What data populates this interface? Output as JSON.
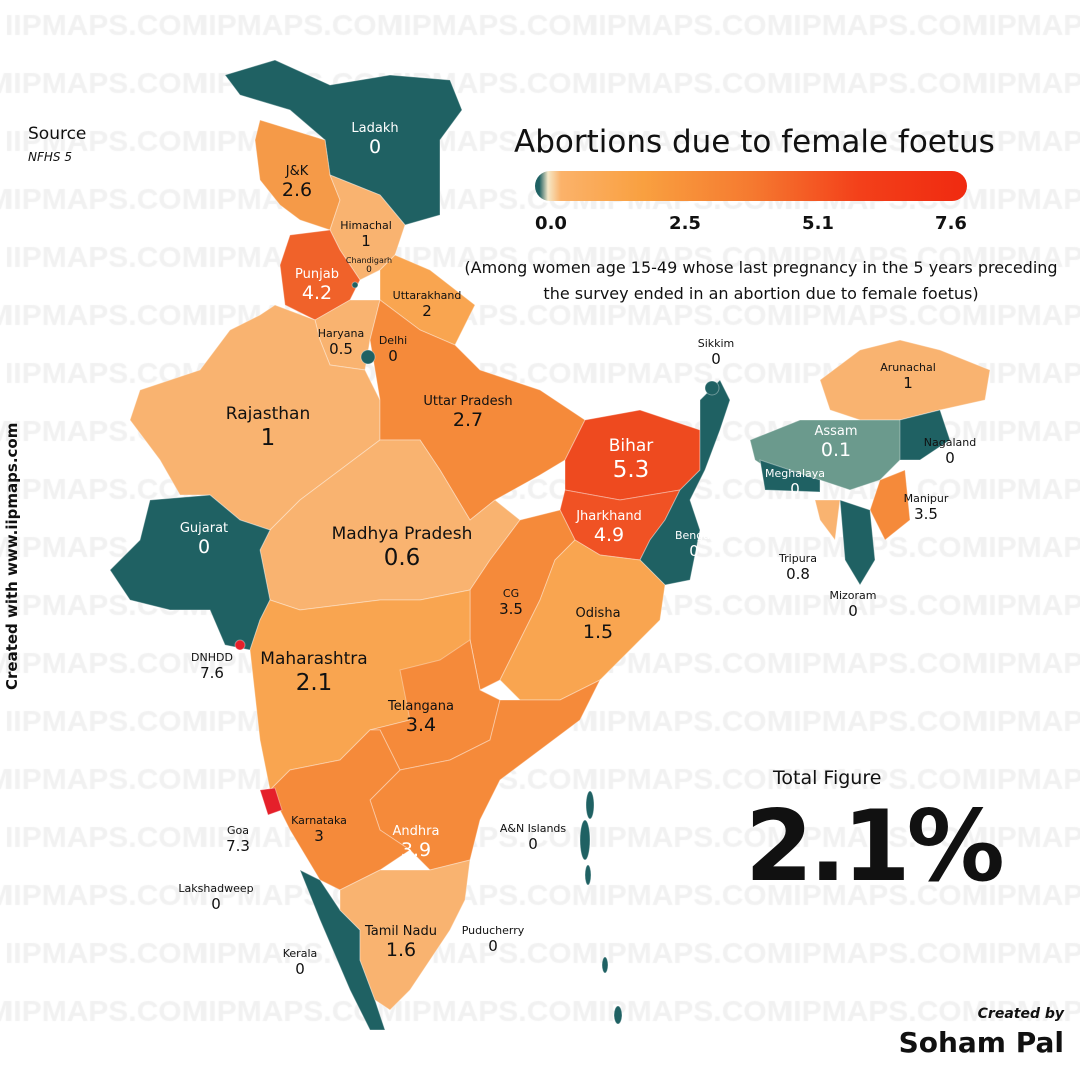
{
  "watermark": "IIPMAPS.COM",
  "source": {
    "label": "Source",
    "value": "NFHS 5"
  },
  "side_credit": "Created with www.iipmaps.com",
  "title": "Abortions due to female foetus",
  "legend": {
    "ticks": [
      "0.0",
      "2.5",
      "5.1",
      "7.6"
    ],
    "min": 0,
    "max": 7.6,
    "colors": {
      "zero": "#1f6163",
      "low": "#fbb26a",
      "mid": "#f57a30",
      "high": "#f02a10"
    }
  },
  "subtitle": "(Among women age 15-49 whose last pregnancy in the 5 years preceding the survey ended in an abortion due to female foetus)",
  "total": {
    "label": "Total Figure",
    "value": "2.1%"
  },
  "credit": {
    "label": "Created by",
    "name": "Soham Pal"
  },
  "regions": [
    {
      "id": "ladakh",
      "name": "Ladakh",
      "value": "0"
    },
    {
      "id": "jk",
      "name": "J&K",
      "value": "2.6"
    },
    {
      "id": "himachal",
      "name": "Himachal",
      "value": "1"
    },
    {
      "id": "chandigarh",
      "name": "Chandigarh",
      "value": "0"
    },
    {
      "id": "punjab",
      "name": "Punjab",
      "value": "4.2"
    },
    {
      "id": "uttarakhand",
      "name": "Uttarakhand",
      "value": "2"
    },
    {
      "id": "haryana",
      "name": "Haryana",
      "value": "0.5"
    },
    {
      "id": "delhi",
      "name": "Delhi",
      "value": "0"
    },
    {
      "id": "rajasthan",
      "name": "Rajasthan",
      "value": "1"
    },
    {
      "id": "up",
      "name": "Uttar Pradesh",
      "value": "2.7"
    },
    {
      "id": "bihar",
      "name": "Bihar",
      "value": "5.3"
    },
    {
      "id": "sikkim",
      "name": "Sikkim",
      "value": "0"
    },
    {
      "id": "arunachal",
      "name": "Arunachal",
      "value": "1"
    },
    {
      "id": "assam",
      "name": "Assam",
      "value": "0.1"
    },
    {
      "id": "nagaland",
      "name": "Nagaland",
      "value": "0"
    },
    {
      "id": "meghalaya",
      "name": "Meghalaya",
      "value": "0"
    },
    {
      "id": "manipur",
      "name": "Manipur",
      "value": "3.5"
    },
    {
      "id": "tripura",
      "name": "Tripura",
      "value": "0.8"
    },
    {
      "id": "mizoram",
      "name": "Mizoram",
      "value": "0"
    },
    {
      "id": "gujarat",
      "name": "Gujarat",
      "value": "0"
    },
    {
      "id": "mp",
      "name": "Madhya Pradesh",
      "value": "0.6"
    },
    {
      "id": "jharkhand",
      "name": "Jharkhand",
      "value": "4.9"
    },
    {
      "id": "bengal",
      "name": "Bengal",
      "value": "0"
    },
    {
      "id": "cg",
      "name": "CG",
      "value": "3.5"
    },
    {
      "id": "odisha",
      "name": "Odisha",
      "value": "1.5"
    },
    {
      "id": "dnhdd",
      "name": "DNHDD",
      "value": "7.6"
    },
    {
      "id": "maharashtra",
      "name": "Maharashtra",
      "value": "2.1"
    },
    {
      "id": "telangana",
      "name": "Telangana",
      "value": "3.4"
    },
    {
      "id": "goa",
      "name": "Goa",
      "value": "7.3"
    },
    {
      "id": "karnataka",
      "name": "Karnataka",
      "value": "3"
    },
    {
      "id": "andhra",
      "name": "Andhra",
      "value": "3.9"
    },
    {
      "id": "an",
      "name": "A&N Islands",
      "value": "0"
    },
    {
      "id": "lakshadweep",
      "name": "Lakshadweep",
      "value": "0"
    },
    {
      "id": "tamilnadu",
      "name": "Tamil Nadu",
      "value": "1.6"
    },
    {
      "id": "puducherry",
      "name": "Puducherry",
      "value": "0"
    },
    {
      "id": "kerala",
      "name": "Kerala",
      "value": "0"
    }
  ]
}
